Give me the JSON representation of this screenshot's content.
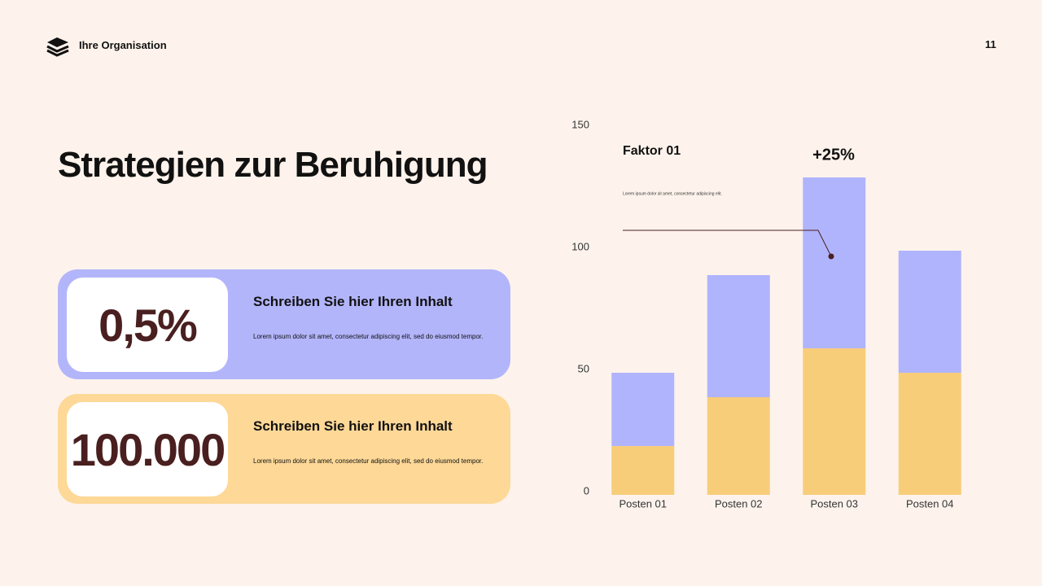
{
  "header": {
    "organisation": "Ihre Organisation",
    "page_number": "11"
  },
  "title": "Strategien zur Beruhigung",
  "cards": [
    {
      "figure": "0,5%",
      "heading": "Schreiben Sie hier Ihren Inhalt",
      "text": "Lorem ipsum dolor sit amet, consectetur adipiscing elit, sed do eiusmod tempor."
    },
    {
      "figure": "100.000",
      "heading": "Schreiben Sie hier Ihren Inhalt",
      "text": "Lorem ipsum dolor sit amet, consectetur adipiscing elit, sed do eiusmod tempor."
    }
  ],
  "chart_data": {
    "type": "stacked_bar",
    "categories": [
      "Posten 01",
      "Posten 02",
      "Posten 03",
      "Posten 04"
    ],
    "series": [
      {
        "color": "#f8cd7a",
        "values": [
          20,
          40,
          60,
          50
        ]
      },
      {
        "color": "#b0b4fc",
        "values": [
          30,
          50,
          70,
          50
        ]
      }
    ],
    "ylim": [
      0,
      150
    ],
    "yticks": [
      0,
      50,
      100,
      150
    ],
    "annotations": {
      "heading": "Faktor 01",
      "text": "Lorem ipsum dolor sit amet, consectetur adipiscing elit.",
      "change": "+25%"
    }
  }
}
